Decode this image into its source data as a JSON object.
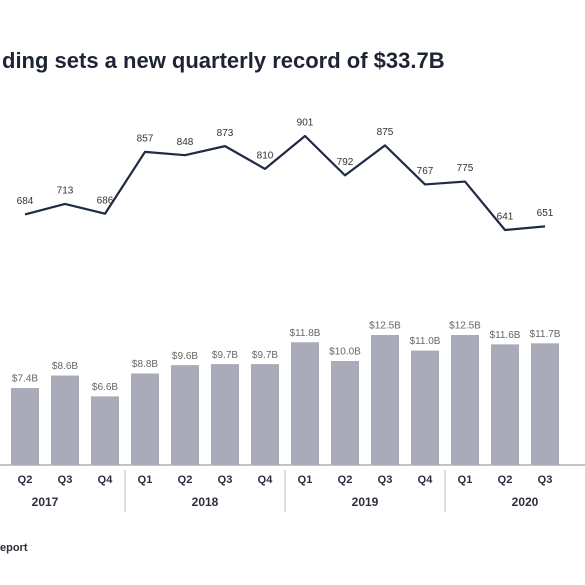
{
  "chart_data": {
    "type": "combo",
    "title": "ding sets a new quarterly record of $33.7B",
    "categories": [
      "Q2",
      "Q3",
      "Q4",
      "Q1",
      "Q2",
      "Q3",
      "Q4",
      "Q1",
      "Q2",
      "Q3",
      "Q4",
      "Q1",
      "Q2",
      "Q3"
    ],
    "years": [
      "2017",
      "2018",
      "2019",
      "2020"
    ],
    "series": [
      {
        "type": "line",
        "color": "#1f2a44",
        "values": [
          684,
          713,
          686,
          857,
          848,
          873,
          810,
          901,
          792,
          875,
          767,
          775,
          641,
          651
        ]
      },
      {
        "type": "bar",
        "color": "#a9acb8",
        "values": [
          7.4,
          8.6,
          6.6,
          8.8,
          9.6,
          9.7,
          9.7,
          11.8,
          10.0,
          12.5,
          11.0,
          12.5,
          11.6,
          11.7
        ],
        "value_labels": [
          "$7.4B",
          "$8.6B",
          "$6.6B",
          "$8.8B",
          "$9.6B",
          "$9.7B",
          "$9.7B",
          "$11.8B",
          "$10.0B",
          "$12.5B",
          "$11.0B",
          "$12.5B",
          "$11.6B",
          "$11.7B"
        ]
      }
    ],
    "source": "eport"
  }
}
